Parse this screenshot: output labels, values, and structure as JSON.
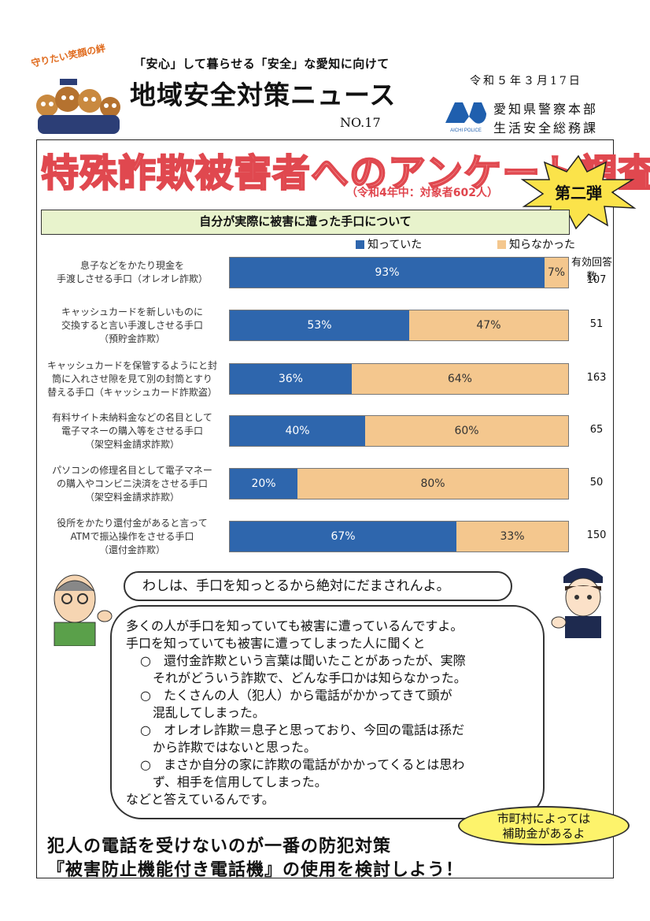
{
  "header": {
    "mascot_caption": "守りたい笑顔の絆",
    "subtitle": "「安心」して暮らせる「安全」な愛知に向けて",
    "title": "地域安全対策ニュース",
    "issue_no": "NO.17",
    "date": "令和５年３月17日",
    "logo_text": "AICHI POLICE",
    "issuer_line1": "愛知県警察本部",
    "issuer_line2": "生活安全総務課"
  },
  "headline": {
    "title": "特殊詐欺被害者へのアンケート調査",
    "scope": "（令和4年中：対象者602人）",
    "badge": "第二弾"
  },
  "section_title": "自分が実際に被害に遭った手口について",
  "colors": {
    "knew": "#2e66ad",
    "did_not_know": "#f4c78e",
    "headline": "#e0484f",
    "banner": "#e8f3cc",
    "subsidy": "#fdf36b"
  },
  "chart_data": {
    "type": "bar",
    "orientation": "horizontal",
    "stacked": true,
    "legend_position": "top-right",
    "response_header": [
      "有効回答",
      "数"
    ],
    "categories": [
      [
        "息子などをかたり現金を",
        "手渡しさせる手口（オレオレ詐欺）"
      ],
      [
        "キャッシュカードを新しいものに",
        "交換すると言い手渡しさせる手口",
        "（預貯金詐欺）"
      ],
      [
        "キャッシュカードを保管するようにと封",
        "筒に入れさせ隙を見て別の封筒とすり",
        "替える手口（キャッシュカード詐欺盗）"
      ],
      [
        "有料サイト未納料金などの名目として",
        "電子マネーの購入等をさせる手口",
        "（架空料金請求詐欺）"
      ],
      [
        "パソコンの修理名目として電子マネー",
        "の購入やコンビニ決済をさせる手口",
        "（架空料金請求詐欺）"
      ],
      [
        "役所をかたり還付金があると言って",
        "ATMで振込操作をさせる手口",
        "（還付金詐欺）"
      ]
    ],
    "series": [
      {
        "name": "知っていた",
        "values": [
          93,
          53,
          36,
          40,
          20,
          67
        ],
        "labels": [
          "93%",
          "53%",
          "36%",
          "40%",
          "20%",
          "67%"
        ]
      },
      {
        "name": "知らなかった",
        "values": [
          7,
          47,
          64,
          60,
          80,
          33
        ],
        "labels": [
          "7%",
          "47%",
          "64%",
          "60%",
          "80%",
          "33%"
        ]
      }
    ],
    "respondents": [
      "107",
      "51",
      "163",
      "65",
      "50",
      "150"
    ],
    "xlim": [
      0,
      100
    ]
  },
  "dialogue": {
    "elder": "わしは、手口を知っとるから絶対にだまされんよ。",
    "officer_lines": [
      "多くの人が手口を知っていても被害に遭っているんですよ。",
      "手口を知っていても被害に遭ってしまった人に聞くと",
      "○　還付金詐欺という言葉は聞いたことがあったが、実際",
      "　それがどういう詐欺で、どんな手口かは知らなかった。",
      "○　たくさんの人（犯人）から電話がかかってきて頭が",
      "　混乱してしまった。",
      "○　オレオレ詐欺＝息子と思っており、今回の電話は孫だ",
      "　から詐欺ではないと思った。",
      "○　まさか自分の家に詐欺の電話がかかってくるとは思わ",
      "　ず、相手を信用してしまった。",
      "などと答えているんです。"
    ],
    "subsidy": [
      "市町村によっては",
      "補助金があるよ"
    ]
  },
  "footer": {
    "line1": "犯人の電話を受けないのが一番の防犯対策",
    "line2": "『被害防止機能付き電話機』の使用を検討しよう！"
  }
}
